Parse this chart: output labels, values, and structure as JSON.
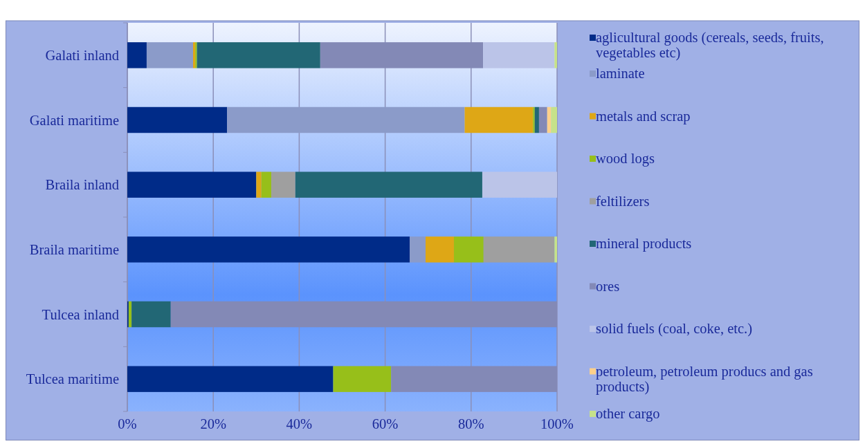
{
  "chart_data": {
    "type": "bar",
    "orientation": "horizontal",
    "stacked": true,
    "categories": [
      "Galati inland",
      "Galati maritime",
      "Braila inland",
      "Braila maritime",
      "Tulcea inland",
      "Tulcea maritime"
    ],
    "series": [
      {
        "name": "aglicultural goods (cereals, seeds, fruits, vegetables etc)",
        "color": "#002b88",
        "values": [
          4.5,
          23.2,
          30.0,
          65.7,
          0.3,
          47.9
        ]
      },
      {
        "name": "laminate",
        "color": "#8b9bc9",
        "values": [
          10.8,
          55.3,
          0,
          3.7,
          0,
          0
        ]
      },
      {
        "name": "metals and scrap",
        "color": "#dea716",
        "values": [
          0.5,
          15.9,
          1.2,
          6.6,
          0,
          0
        ]
      },
      {
        "name": "wood logs",
        "color": "#97bf1a",
        "values": [
          0.4,
          0.4,
          2.3,
          6.9,
          0.7,
          13.5
        ]
      },
      {
        "name": "feltilizers",
        "color": "#9f9f9f",
        "values": [
          0,
          0,
          5.6,
          16.5,
          0,
          0
        ]
      },
      {
        "name": "mineral products",
        "color": "#226775",
        "values": [
          28.7,
          1.0,
          43.5,
          0,
          9.1,
          0
        ]
      },
      {
        "name": "ores",
        "color": "#8389b6",
        "values": [
          37.9,
          1.9,
          0,
          0,
          89.9,
          38.6
        ]
      },
      {
        "name": "solid fuels (coal, coke, etc.)",
        "color": "#bbc4e8",
        "values": [
          16.6,
          0,
          17.4,
          0,
          0,
          0
        ]
      },
      {
        "name": "petroleum, petroleum producs and gas products)",
        "color": "#fdd08a",
        "values": [
          0,
          0.9,
          0,
          0,
          0,
          0
        ]
      },
      {
        "name": "other cargo",
        "color": "#c6e28a",
        "values": [
          0.6,
          1.4,
          0,
          0.6,
          0,
          0
        ]
      }
    ],
    "xlim": [
      0,
      100
    ],
    "xticks": [
      {
        "value": 0,
        "label": "0%"
      },
      {
        "value": 20,
        "label": "20%"
      },
      {
        "value": 40,
        "label": "40%"
      },
      {
        "value": 60,
        "label": "60%"
      },
      {
        "value": 80,
        "label": "80%"
      },
      {
        "value": 100,
        "label": "100%"
      }
    ],
    "grid": "x",
    "legend": "right"
  }
}
